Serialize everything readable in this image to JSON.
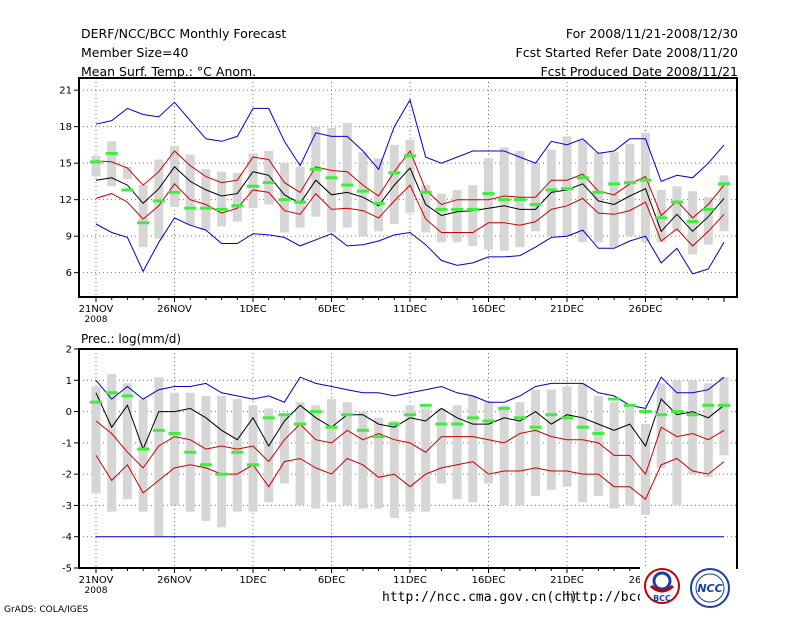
{
  "header": {
    "line1_left": "DERF/NCC/BCC Monthly Forecast",
    "line2_left": "Member Size=40",
    "line3_left": "Mean Surf. Temp.: °C Anom.",
    "line1_right": "For 2008/11/21-2008/12/30",
    "line2_right": "Fcst Started Refer Date 2008/11/20",
    "line3_right": "Fcst Produced Date 2008/11/21"
  },
  "footer": {
    "url1": "http://ncc.cma.gov.cn(ch)",
    "url2": "http://bcc.",
    "grads": "GrADS: COLA/IGES",
    "logo1": "BCC",
    "logo2": "NCC"
  },
  "chart_data": [
    {
      "type": "line",
      "title": "Mean Surf. Temp.: °C Anom.",
      "ylim": [
        4,
        22
      ],
      "yticks": [
        "6",
        "9",
        "12",
        "15",
        "18",
        "21"
      ],
      "xlabels": [
        "21NOV",
        "26NOV",
        "1DEC",
        "6DEC",
        "11DEC",
        "16DEC",
        "21DEC",
        "26DEC"
      ],
      "xlabel_year": "2008",
      "series": [
        {
          "name": "max",
          "color": "#0000cc",
          "values": [
            18.2,
            18.5,
            19.5,
            19.0,
            18.8,
            20.0,
            18.5,
            17.0,
            16.8,
            17.2,
            19.5,
            19.5,
            16.8,
            14.8,
            17.5,
            17.2,
            17.2,
            16.0,
            14.5,
            18.0,
            20.2,
            15.5,
            15.0,
            15.5,
            16.0,
            16.0,
            16.0,
            15.5,
            15.0,
            16.8,
            16.5,
            17.0,
            15.8,
            16.0,
            17.0,
            17.0,
            13.5,
            14.0,
            13.8,
            15.0,
            16.5
          ]
        },
        {
          "name": "upper",
          "color": "#cc0000",
          "values": [
            15.2,
            15.1,
            14.6,
            13.2,
            14.3,
            16.0,
            14.8,
            13.9,
            13.4,
            13.6,
            15.5,
            15.3,
            13.4,
            12.6,
            14.7,
            14.4,
            14.3,
            13.2,
            12.3,
            14.3,
            16.0,
            12.8,
            11.6,
            12.0,
            12.0,
            12.0,
            12.3,
            12.2,
            12.2,
            13.6,
            13.6,
            14.1,
            12.7,
            12.4,
            13.3,
            13.9,
            10.7,
            11.9,
            10.5,
            11.6,
            13.2
          ]
        },
        {
          "name": "mean",
          "color": "#000000",
          "values": [
            13.6,
            13.8,
            13.2,
            11.7,
            12.9,
            14.7,
            13.5,
            12.8,
            12.3,
            12.5,
            14.3,
            14.0,
            12.4,
            11.7,
            13.6,
            12.4,
            12.6,
            12.2,
            11.5,
            13.2,
            14.6,
            11.6,
            10.7,
            11.0,
            11.1,
            11.3,
            11.5,
            11.2,
            11.2,
            12.6,
            12.8,
            13.3,
            11.9,
            11.6,
            12.3,
            12.9,
            9.4,
            10.8,
            9.4,
            10.6,
            12.1
          ]
        },
        {
          "name": "lower",
          "color": "#cc0000",
          "values": [
            12.1,
            12.5,
            11.8,
            10.4,
            11.5,
            13.3,
            12.0,
            11.6,
            10.9,
            11.3,
            12.8,
            12.6,
            11.1,
            10.8,
            12.5,
            11.2,
            11.3,
            11.1,
            10.5,
            11.9,
            13.2,
            10.4,
            9.3,
            9.3,
            9.3,
            10.1,
            10.1,
            9.9,
            10.2,
            11.2,
            11.5,
            12.1,
            10.9,
            10.8,
            11.1,
            11.8,
            8.6,
            9.6,
            8.2,
            9.4,
            10.8
          ]
        },
        {
          "name": "min",
          "color": "#0000cc",
          "values": [
            10.0,
            9.3,
            8.9,
            6.1,
            8.5,
            10.5,
            9.9,
            9.5,
            8.4,
            8.4,
            9.2,
            9.1,
            8.9,
            8.2,
            8.7,
            9.2,
            8.2,
            8.3,
            8.6,
            9.1,
            9.3,
            8.3,
            7.0,
            6.6,
            6.8,
            7.3,
            7.3,
            7.4,
            8.1,
            8.9,
            9.0,
            9.5,
            8.0,
            8.0,
            8.6,
            9.0,
            6.8,
            8.0,
            5.9,
            6.3,
            8.5
          ]
        }
      ],
      "box_low": [
        13.9,
        13.1,
        13.7,
        8.1,
        8.8,
        11.4,
        9.9,
        9.5,
        9.8,
        10.2,
        11.3,
        11.6,
        9.3,
        9.7,
        10.6,
        9.3,
        9.7,
        9.0,
        9.4,
        10.0,
        10.9,
        9.3,
        8.5,
        8.5,
        8.2,
        7.9,
        7.8,
        8.1,
        9.4,
        9.0,
        9.0,
        8.5,
        8.5,
        8.1,
        9.0,
        8.5,
        8.5,
        9.4,
        7.5,
        8.3,
        9.4
      ],
      "box_high": [
        15.6,
        16.8,
        14.7,
        13.2,
        15.3,
        16.4,
        15.7,
        14.5,
        14.3,
        14.2,
        15.8,
        16.0,
        15.0,
        14.7,
        18.0,
        17.9,
        18.3,
        15.9,
        15.4,
        16.5,
        16.9,
        13.2,
        12.5,
        12.8,
        13.2,
        15.4,
        16.3,
        16.0,
        15.1,
        16.1,
        17.2,
        16.9,
        15.9,
        15.9,
        16.6,
        17.5,
        12.8,
        13.1,
        12.7,
        12.2,
        14.0
      ],
      "obs": [
        15.1,
        15.8,
        12.8,
        10.1,
        11.9,
        12.6,
        11.3,
        11.3,
        11.2,
        11.5,
        13.1,
        13.4,
        12.0,
        11.8,
        14.5,
        13.8,
        13.2,
        12.7,
        11.7,
        14.2,
        15.6,
        12.6,
        11.2,
        11.2,
        11.2,
        12.5,
        12.0,
        12.0,
        11.6,
        12.8,
        12.9,
        13.8,
        12.6,
        13.3,
        13.4,
        13.6,
        10.5,
        11.8,
        10.2,
        11.2,
        13.3
      ]
    },
    {
      "type": "line",
      "title": "Prec.: log(mm/d)",
      "ylim": [
        -5,
        2
      ],
      "yticks": [
        "-5",
        "-4",
        "-3",
        "-2",
        "-1",
        "0",
        "1",
        "2"
      ],
      "xlabels": [
        "21NOV",
        "26NOV",
        "1DEC",
        "6DEC",
        "11DEC",
        "16DEC",
        "21DEC",
        "26DEC"
      ],
      "xlabel_year": "2008",
      "baseline": -4,
      "series": [
        {
          "name": "max",
          "color": "#0000cc",
          "values": [
            1.0,
            0.4,
            0.8,
            0.4,
            0.7,
            0.8,
            0.8,
            0.9,
            0.6,
            0.5,
            0.4,
            0.5,
            0.3,
            1.1,
            0.9,
            0.8,
            0.7,
            0.6,
            0.6,
            0.5,
            0.6,
            0.7,
            0.8,
            0.6,
            0.5,
            0.3,
            0.3,
            0.5,
            0.8,
            0.9,
            0.9,
            0.9,
            0.6,
            0.5,
            0.2,
            0.1,
            1.1,
            0.6,
            0.6,
            0.7,
            1.1
          ]
        },
        {
          "name": "upper",
          "color": "#000000",
          "values": [
            0.6,
            -0.5,
            0.2,
            -1.2,
            0.0,
            0.0,
            0.1,
            -0.2,
            -0.6,
            -0.9,
            -0.2,
            -1.1,
            -0.3,
            0.2,
            -0.2,
            -0.5,
            -0.1,
            -0.1,
            -0.4,
            -0.5,
            -0.2,
            -0.3,
            0.1,
            -0.2,
            -0.4,
            -0.4,
            -0.2,
            -0.3,
            0.0,
            -0.4,
            -0.1,
            -0.2,
            -0.4,
            -0.6,
            -0.4,
            -1.1,
            0.4,
            -0.1,
            0.0,
            -0.2,
            0.2
          ]
        },
        {
          "name": "mean",
          "color": "#cc0000",
          "values": [
            -0.3,
            -0.7,
            -1.3,
            -1.8,
            -1.1,
            -0.8,
            -0.9,
            -1.2,
            -1.1,
            -1.2,
            -1.1,
            -1.6,
            -0.9,
            -0.4,
            -0.9,
            -1.0,
            -0.6,
            -0.9,
            -0.7,
            -0.9,
            -1.0,
            -1.3,
            -0.8,
            -0.8,
            -0.8,
            -0.9,
            -1.0,
            -0.7,
            -0.6,
            -0.8,
            -0.9,
            -0.9,
            -1.0,
            -1.4,
            -1.4,
            -2.0,
            -0.5,
            -0.8,
            -0.7,
            -0.9,
            -0.6
          ]
        },
        {
          "name": "lower",
          "color": "#cc0000",
          "values": [
            -1.4,
            -2.2,
            -1.7,
            -2.6,
            -2.2,
            -1.8,
            -1.7,
            -1.8,
            -2.0,
            -2.0,
            -1.7,
            -2.4,
            -1.6,
            -1.5,
            -1.8,
            -2.0,
            -1.5,
            -1.7,
            -2.1,
            -2.0,
            -2.4,
            -2.0,
            -1.8,
            -1.7,
            -1.6,
            -2.0,
            -1.9,
            -1.9,
            -1.8,
            -1.9,
            -1.9,
            -2.0,
            -2.0,
            -2.4,
            -2.4,
            -2.8,
            -1.7,
            -1.5,
            -1.9,
            -2.0,
            -1.6
          ]
        },
        {
          "name": "min",
          "color": "#0000cc",
          "values": [
            -4.0,
            -4.0,
            -4.0,
            -4.0,
            -4.0,
            -4.0,
            -4.0,
            -4.0,
            -4.0,
            -4.0,
            -4.0,
            -4.0,
            -4.0,
            -4.0,
            -4.0,
            -4.0,
            -4.0,
            -4.0,
            -4.0,
            -4.0,
            -4.0,
            -4.0,
            -4.0,
            -4.0,
            -4.0,
            -4.0,
            -4.0,
            -4.0,
            -4.0,
            -4.0,
            -4.0,
            -4.0,
            -4.0,
            -4.0,
            -4.0,
            -4.0,
            -4.0,
            -4.0,
            -4.0,
            -4.0,
            -4.0
          ]
        }
      ],
      "box_low": [
        -2.6,
        -3.2,
        -2.8,
        -3.2,
        -4.0,
        -3.0,
        -3.2,
        -3.5,
        -3.7,
        -3.2,
        -3.2,
        -2.9,
        -2.3,
        -3.0,
        -3.1,
        -2.9,
        -3.0,
        -3.1,
        -3.1,
        -3.4,
        -3.2,
        -3.2,
        -2.3,
        -2.8,
        -2.9,
        -2.3,
        -3.0,
        -3.0,
        -2.7,
        -2.5,
        -2.4,
        -2.9,
        -2.7,
        -3.1,
        -3.0,
        -3.3,
        -1.8,
        -3.0,
        -2.0,
        -2.1,
        -1.4
      ],
      "box_high": [
        0.8,
        1.2,
        0.9,
        0.4,
        1.1,
        0.6,
        0.6,
        0.5,
        0.5,
        0.4,
        0.2,
        0.1,
        -0.1,
        0.3,
        0.2,
        0.4,
        0.3,
        0.0,
        -0.2,
        -0.3,
        0.2,
        0.1,
        0.1,
        0.2,
        0.5,
        0.3,
        0.2,
        0.3,
        0.7,
        0.7,
        0.8,
        0.9,
        0.5,
        0.3,
        0.2,
        -0.4,
        0.9,
        1.0,
        1.0,
        0.9,
        1.1
      ],
      "obs": [
        0.3,
        0.6,
        0.5,
        -1.2,
        -0.6,
        -0.7,
        -1.3,
        -1.7,
        -2.0,
        -1.3,
        -1.7,
        -0.2,
        -0.1,
        -0.4,
        0.0,
        -0.5,
        -0.1,
        -0.6,
        -0.8,
        -0.4,
        -0.1,
        0.2,
        -0.4,
        -0.4,
        -0.2,
        -0.3,
        0.1,
        -0.2,
        -0.5,
        -0.1,
        -0.2,
        -0.5,
        -0.7,
        0.4,
        0.2,
        0.0,
        -0.1,
        0.0,
        -0.1,
        0.2,
        0.2
      ]
    }
  ]
}
